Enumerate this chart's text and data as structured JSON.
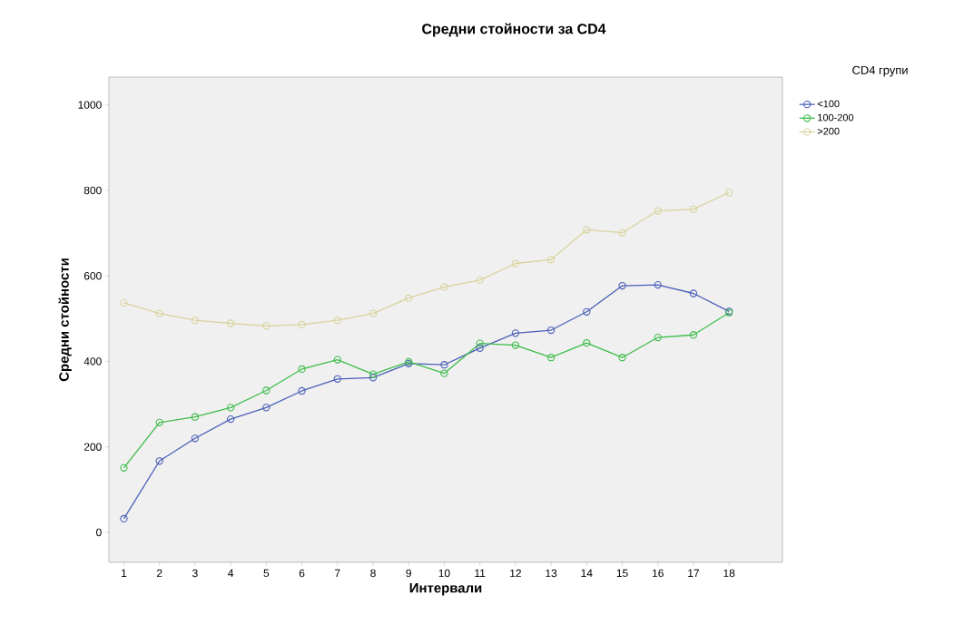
{
  "chart_data": {
    "type": "line",
    "title": "Средни стойности за CD4",
    "xlabel": "Интервали",
    "ylabel": "Средни стойности",
    "legend_title": "CD4 групи",
    "categories": [
      "1",
      "2",
      "3",
      "4",
      "5",
      "6",
      "7",
      "8",
      "9",
      "10",
      "11",
      "12",
      "13",
      "14",
      "15",
      "16",
      "17",
      "18"
    ],
    "series": [
      {
        "name": "<100",
        "color": "#4a5fb8",
        "values": [
          32,
          167,
          220,
          265,
          292,
          331,
          359,
          362,
          395,
          392,
          431,
          466,
          473,
          516,
          577,
          579,
          559,
          517
        ]
      },
      {
        "name": "100-200",
        "color": "#3dbd4a",
        "values": [
          151,
          257,
          270,
          292,
          332,
          382,
          404,
          370,
          399,
          372,
          442,
          438,
          409,
          443,
          409,
          456,
          462,
          514
        ]
      },
      {
        "name": ">200",
        "color": "#d9d39e",
        "values": [
          537,
          512,
          496,
          489,
          483,
          486,
          496,
          512,
          548,
          574,
          590,
          629,
          638,
          708,
          701,
          752,
          756,
          795
        ]
      }
    ],
    "ylim": [
      -70,
      1065
    ],
    "yticks": [
      0,
      200,
      400,
      600,
      800,
      1000
    ],
    "grid": false,
    "legend": "top right",
    "marker": "circle",
    "line_style": "solid"
  }
}
